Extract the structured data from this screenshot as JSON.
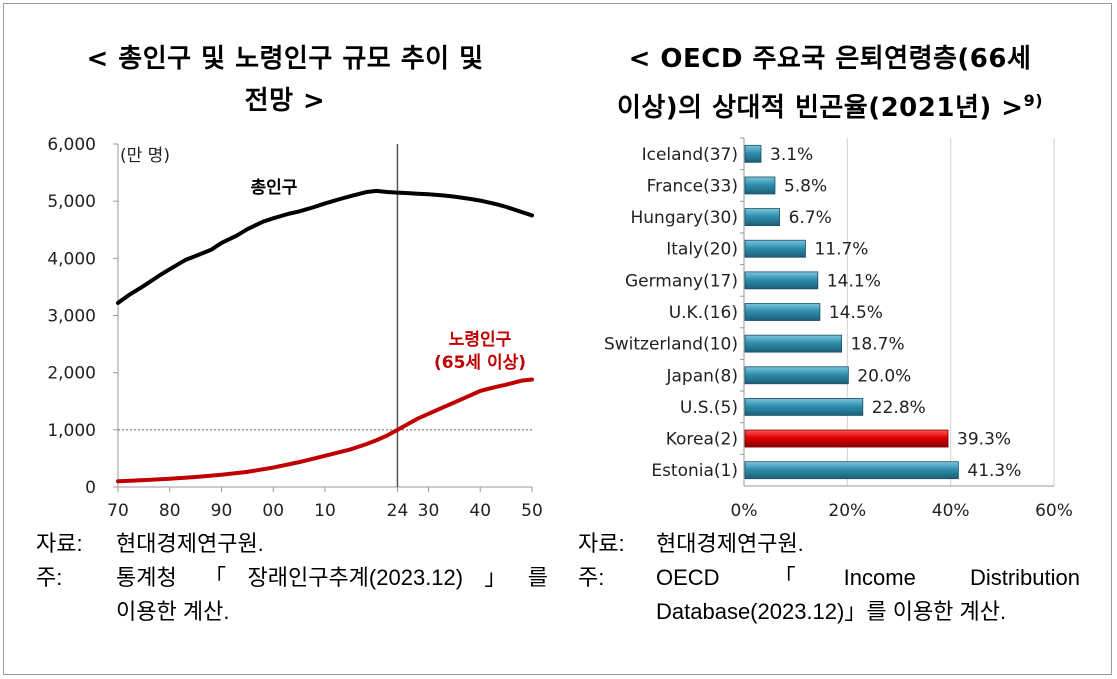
{
  "left_chart_title": "< 총인구 및 노령인구 규모 추이 및 전망 >",
  "left_chart_title_lines": [
    "< 총인구 및 노령인구 규모 추이 및",
    "전망 >"
  ],
  "right_chart_title_lines": [
    "< OECD 주요국 은퇴연령층(66세",
    "이상)의 상대적 빈곤율(2021년) >"
  ],
  "right_title_sup": "9)",
  "chart_data": [
    {
      "type": "line",
      "unit_label": "(만 명)",
      "ylim": [
        0,
        6000
      ],
      "y_ticks": [
        "6,000",
        "5,000",
        "4,000",
        "3,000",
        "2,000",
        "1,000",
        "0"
      ],
      "y_tick_values": [
        6000,
        5000,
        4000,
        3000,
        2000,
        1000,
        0
      ],
      "xlim": [
        1970,
        2050
      ],
      "x_ticks": [
        "70",
        "80",
        "90",
        "00",
        "10",
        "24",
        "30",
        "40",
        "50"
      ],
      "x_tick_values": [
        1970,
        1980,
        1990,
        2000,
        2010,
        2024,
        2030,
        2040,
        2050
      ],
      "reference_vline": 2024,
      "reference_hline": 1000,
      "series": [
        {
          "name": "총인구",
          "color": "#000000",
          "x": [
            1970,
            1972,
            1975,
            1978,
            1980,
            1983,
            1985,
            1988,
            1990,
            1993,
            1995,
            1998,
            2000,
            2003,
            2005,
            2008,
            2010,
            2013,
            2015,
            2018,
            2020,
            2022,
            2024,
            2026,
            2028,
            2030,
            2033,
            2035,
            2038,
            2040,
            2043,
            2045,
            2048,
            2050
          ],
          "values": [
            3220,
            3350,
            3520,
            3700,
            3810,
            3970,
            4040,
            4150,
            4270,
            4400,
            4510,
            4640,
            4700,
            4780,
            4820,
            4900,
            4960,
            5040,
            5090,
            5160,
            5180,
            5160,
            5150,
            5140,
            5130,
            5120,
            5100,
            5080,
            5040,
            5010,
            4950,
            4900,
            4810,
            4750
          ]
        },
        {
          "name": "노령인구",
          "name_line2": "(65세 이상)",
          "color": "#c00000",
          "x": [
            1970,
            1975,
            1980,
            1985,
            1990,
            1995,
            2000,
            2005,
            2010,
            2015,
            2018,
            2020,
            2022,
            2024,
            2026,
            2028,
            2030,
            2033,
            2035,
            2038,
            2040,
            2043,
            2045,
            2048,
            2050
          ],
          "values": [
            100,
            120,
            145,
            175,
            215,
            265,
            340,
            435,
            545,
            660,
            750,
            820,
            900,
            1000,
            1100,
            1200,
            1280,
            1400,
            1480,
            1600,
            1680,
            1750,
            1790,
            1860,
            1880
          ]
        }
      ]
    },
    {
      "type": "bar",
      "orientation": "horizontal",
      "xlim": [
        0,
        60
      ],
      "x_ticks": [
        "0%",
        "20%",
        "40%",
        "60%"
      ],
      "x_tick_values": [
        0,
        20,
        40,
        60
      ],
      "bar_color": "#2f8fad",
      "highlight_color": "#e00000",
      "categories": [
        "Iceland(37)",
        "France(33)",
        "Hungary(30)",
        "Italy(20)",
        "Germany(17)",
        "U.K.(16)",
        "Switzerland(10)",
        "Japan(8)",
        "U.S.(5)",
        "Korea(2)",
        "Estonia(1)"
      ],
      "values": [
        3.1,
        5.8,
        6.7,
        11.7,
        14.1,
        14.5,
        18.7,
        20.0,
        22.8,
        39.3,
        41.3
      ],
      "value_labels": [
        "3.1%",
        "5.8%",
        "6.7%",
        "11.7%",
        "14.1%",
        "14.5%",
        "18.7%",
        "20.0%",
        "22.8%",
        "39.3%",
        "41.3%"
      ],
      "highlight_index": 9
    }
  ],
  "left_notes": {
    "source_key": "자료:",
    "source_text": "현대경제연구원.",
    "note_key": "주:",
    "note_line1": "통계청 「장래인구추계(2023.12)」를",
    "note_line2": "이용한 계산."
  },
  "right_notes": {
    "source_key": "자료:",
    "source_text": "현대경제연구원.",
    "note_key": "주:",
    "note_line1": "OECD 「Income Distribution",
    "note_line2": "Database(2023.12)」를 이용한 계산."
  }
}
